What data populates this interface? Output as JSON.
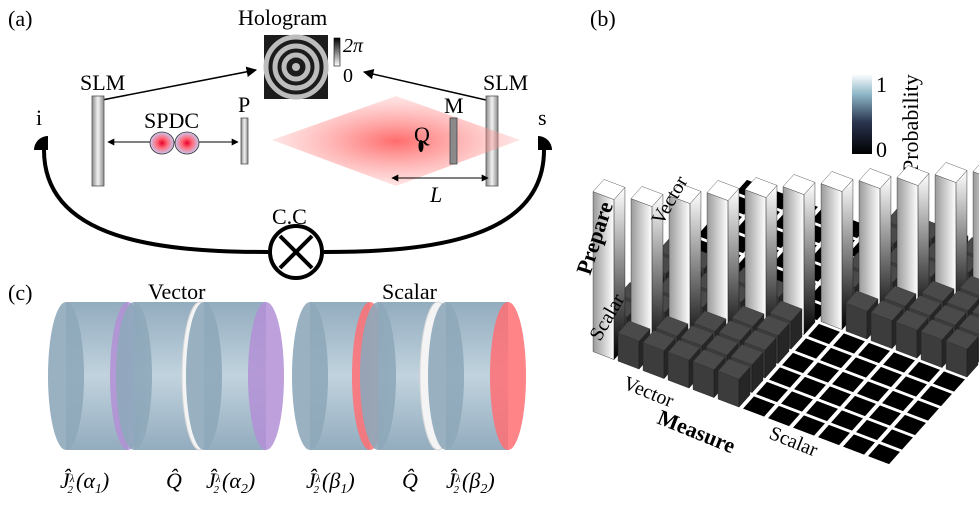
{
  "panels": {
    "a": {
      "tag": "(a)",
      "hologram": "Hologram",
      "scale_top": "2π",
      "scale_bottom": "0",
      "slm_left": "SLM",
      "slm_right": "SLM",
      "spdc": "SPDC",
      "polarizer": "P",
      "mirror": "M",
      "idler": "i",
      "signal": "s",
      "length": "L",
      "coincidence": "C.C",
      "object_symbol": "Q"
    },
    "b": {
      "tag": "(b)",
      "colorbar_title": "Probability",
      "colorbar_max": "1",
      "colorbar_min": "0",
      "prepare": "Prepare",
      "measure": "Measure",
      "prepare_vector": "Vector",
      "prepare_scalar": "Scalar",
      "measure_vector": "Vector",
      "measure_scalar": "Scalar"
    },
    "c": {
      "tag": "(c)",
      "vector_title": "Vector",
      "scalar_title": "Scalar",
      "colors": {
        "purple": "#b38fd6",
        "red": "#ff6f73",
        "plate": "#8eaabd"
      },
      "labels": [
        {
          "j": "Ĵ",
          "arg": "(α",
          "sub": "1",
          "close": ")"
        },
        {
          "q": "Q̂"
        },
        {
          "j": "Ĵ",
          "arg": "(α",
          "sub": "2",
          "close": ")"
        },
        {
          "j": "Ĵ",
          "arg": "(β",
          "sub": "1",
          "close": ")"
        },
        {
          "q": "Q̂"
        },
        {
          "j": "Ĵ",
          "arg": "(β",
          "sub": "2",
          "close": ")"
        }
      ],
      "frac_num": "λ",
      "frac_den": "2"
    }
  }
}
